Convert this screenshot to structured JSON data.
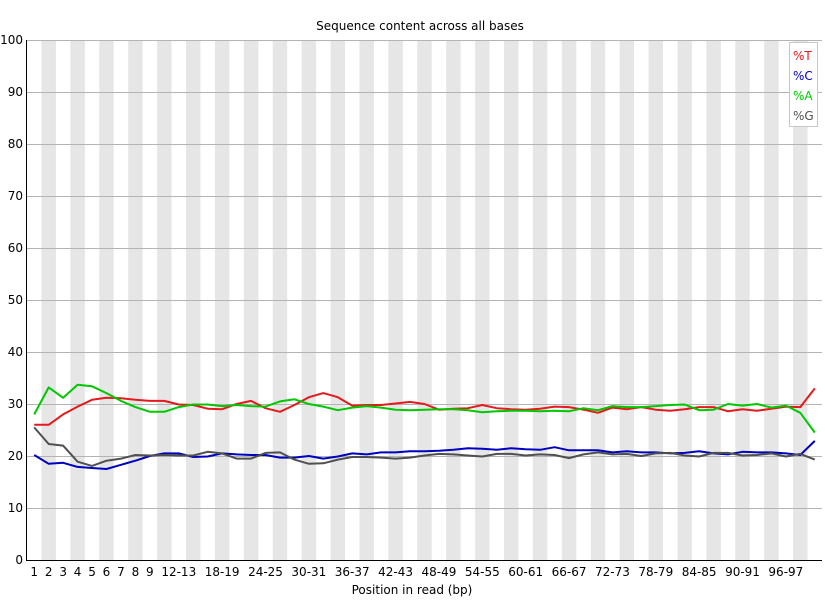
{
  "chart_data": {
    "type": "line",
    "title": "Sequence content across all bases",
    "xlabel": "Position in read (bp)",
    "ylabel": "",
    "ylim": [
      0,
      100
    ],
    "yticks": [
      0,
      10,
      20,
      30,
      40,
      50,
      60,
      70,
      80,
      90,
      100
    ],
    "grid": "horizontal",
    "legend_placement": "top-right",
    "categories": [
      "1",
      "2",
      "3",
      "4",
      "5",
      "6",
      "7",
      "8",
      "9",
      "10-11",
      "12-13",
      "14-15",
      "16-17",
      "18-19",
      "20-21",
      "22-23",
      "24-25",
      "26-27",
      "28-29",
      "30-31",
      "32-33",
      "34-35",
      "36-37",
      "38-39",
      "40-41",
      "42-43",
      "44-45",
      "46-47",
      "48-49",
      "50-51",
      "52-53",
      "54-55",
      "56-57",
      "58-59",
      "60-61",
      "62-63",
      "64-65",
      "66-67",
      "68-69",
      "70-71",
      "72-73",
      "74-75",
      "76-77",
      "78-79",
      "80-81",
      "82-83",
      "84-85",
      "86-87",
      "88-89",
      "90-91",
      "92-93",
      "94-95",
      "96-97",
      "98-99",
      "100-101"
    ],
    "tick_labels": [
      "1",
      "2",
      "3",
      "4",
      "5",
      "6",
      "7",
      "8",
      "9",
      "12-13",
      "18-19",
      "24-25",
      "30-31",
      "36-37",
      "42-43",
      "48-49",
      "54-55",
      "60-61",
      "66-67",
      "72-73",
      "78-79",
      "84-85",
      "90-91",
      "96-97"
    ],
    "series": [
      {
        "name": "%T",
        "color": "#e41a1c",
        "values": [
          26.0,
          26.0,
          28.0,
          29.5,
          30.8,
          31.2,
          31.1,
          30.8,
          30.6,
          30.6,
          29.9,
          29.8,
          29.1,
          29.0,
          30.0,
          30.6,
          29.2,
          28.5,
          29.8,
          31.3,
          32.1,
          31.3,
          29.7,
          29.8,
          29.8,
          30.1,
          30.4,
          30.0,
          28.9,
          29.1,
          29.2,
          29.8,
          29.2,
          29.0,
          28.9,
          29.1,
          29.5,
          29.4,
          28.9,
          28.3,
          29.3,
          29.0,
          29.4,
          28.9,
          28.7,
          29.0,
          29.4,
          29.4,
          28.6,
          29.0,
          28.7,
          29.1,
          29.5,
          29.4,
          33.0
        ]
      },
      {
        "name": "%C",
        "color": "#0000c0",
        "values": [
          20.2,
          18.5,
          18.7,
          17.9,
          17.7,
          17.5,
          18.3,
          19.1,
          20.0,
          20.5,
          20.5,
          19.8,
          19.9,
          20.5,
          20.3,
          20.2,
          20.2,
          19.7,
          19.7,
          20.0,
          19.5,
          19.9,
          20.5,
          20.3,
          20.7,
          20.7,
          20.9,
          20.9,
          21.0,
          21.2,
          21.5,
          21.4,
          21.2,
          21.5,
          21.3,
          21.2,
          21.7,
          21.1,
          21.1,
          21.1,
          20.7,
          20.9,
          20.7,
          20.7,
          20.5,
          20.6,
          20.9,
          20.5,
          20.3,
          20.8,
          20.7,
          20.7,
          20.5,
          20.2,
          22.9
        ]
      },
      {
        "name": "%A",
        "color": "#00c800",
        "values": [
          28.0,
          33.2,
          31.2,
          33.7,
          33.4,
          32.1,
          30.6,
          29.4,
          28.5,
          28.5,
          29.4,
          29.9,
          29.9,
          29.6,
          29.8,
          29.6,
          29.5,
          30.5,
          30.9,
          30.0,
          29.5,
          28.8,
          29.3,
          29.6,
          29.3,
          28.9,
          28.8,
          28.9,
          29.0,
          29.0,
          28.8,
          28.4,
          28.6,
          28.7,
          28.7,
          28.6,
          28.7,
          28.6,
          29.2,
          28.8,
          29.6,
          29.4,
          29.4,
          29.6,
          29.8,
          29.9,
          28.8,
          28.9,
          30.0,
          29.7,
          30.0,
          29.3,
          29.7,
          28.3,
          24.5
        ]
      },
      {
        "name": "%G",
        "color": "#505050",
        "values": [
          25.5,
          22.3,
          22.0,
          18.9,
          18.1,
          19.1,
          19.5,
          20.2,
          20.1,
          20.2,
          20.1,
          20.1,
          20.8,
          20.5,
          19.5,
          19.5,
          20.6,
          20.7,
          19.3,
          18.5,
          18.6,
          19.3,
          19.8,
          19.8,
          19.7,
          19.5,
          19.7,
          20.1,
          20.4,
          20.3,
          20.1,
          19.9,
          20.4,
          20.4,
          20.1,
          20.3,
          20.2,
          19.6,
          20.3,
          20.7,
          20.3,
          20.4,
          20.0,
          20.5,
          20.6,
          20.1,
          19.9,
          20.6,
          20.6,
          20.1,
          20.2,
          20.5,
          19.9,
          20.4,
          19.3
        ]
      }
    ]
  }
}
